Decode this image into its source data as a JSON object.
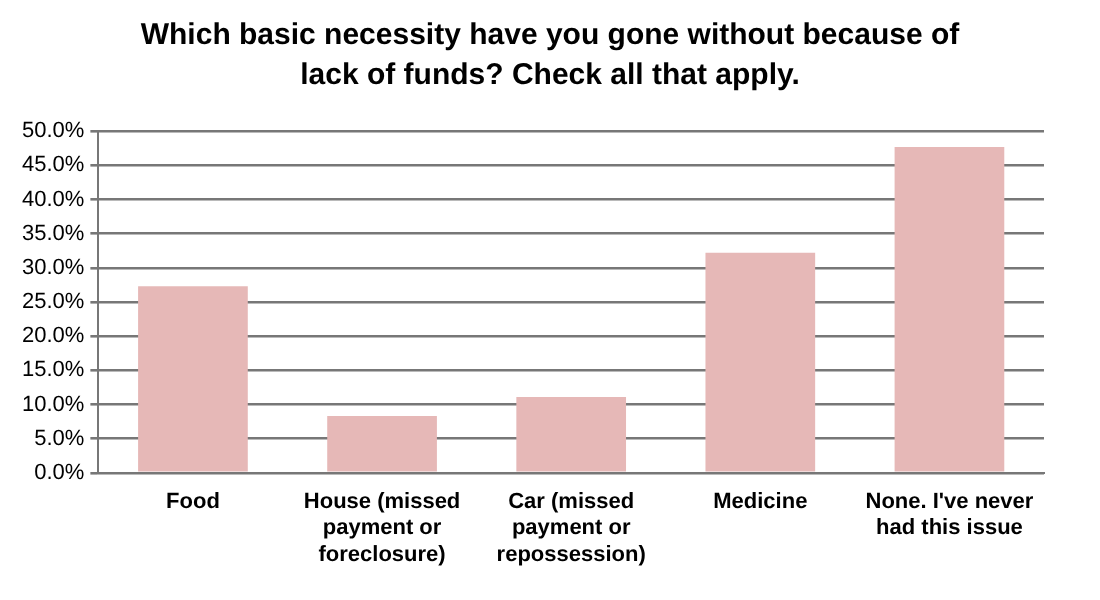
{
  "chart_data": {
    "type": "bar",
    "title": "Which basic necessity have you gone without because of lack of funds? Check all that apply.",
    "categories": [
      "Food",
      "House (missed payment or foreclosure)",
      "Car (missed payment or repossession)",
      "Medicine",
      "None. I've never had this issue"
    ],
    "values": [
      27.3,
      8.3,
      11.1,
      32.2,
      47.7
    ],
    "color": "#e6b8b7",
    "ylim": [
      0,
      50
    ],
    "yticks": [
      {
        "value": 0,
        "label": "0.0%"
      },
      {
        "value": 5,
        "label": "5.0%"
      },
      {
        "value": 10,
        "label": "10.0%"
      },
      {
        "value": 15,
        "label": "15.0%"
      },
      {
        "value": 20,
        "label": "20.0%"
      },
      {
        "value": 25,
        "label": "25.0%"
      },
      {
        "value": 30,
        "label": "30.0%"
      },
      {
        "value": 35,
        "label": "35.0%"
      },
      {
        "value": 40,
        "label": "40.0%"
      },
      {
        "value": 45,
        "label": "45.0%"
      },
      {
        "value": 50,
        "label": "50.0%"
      }
    ],
    "grid": "y",
    "legend": false
  }
}
